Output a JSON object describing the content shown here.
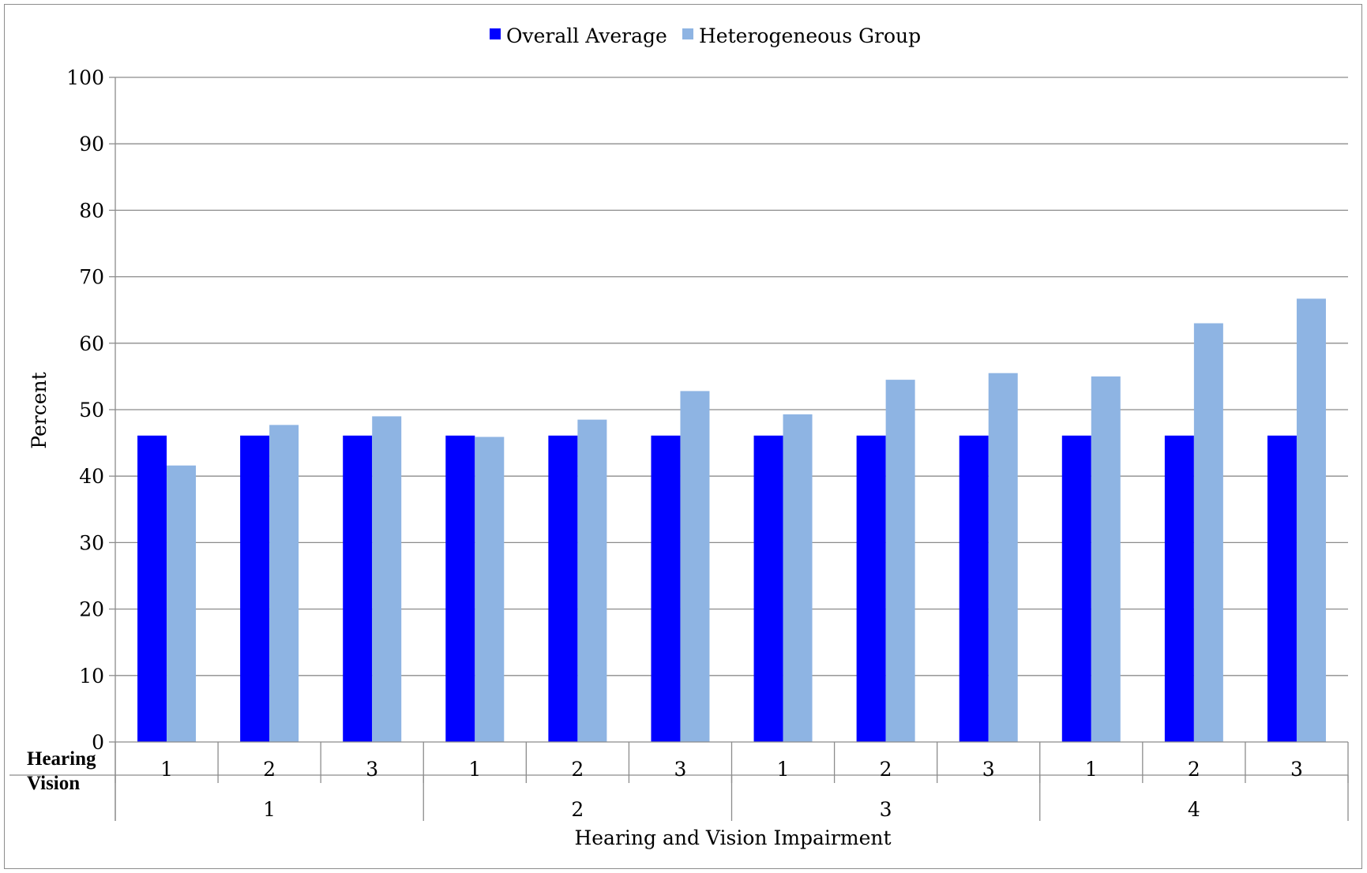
{
  "chart_data": {
    "type": "bar",
    "ylabel": "Percent",
    "xlabel": "Hearing and Vision Impairment",
    "ylim": [
      0,
      100
    ],
    "yticks": [
      "0",
      "10",
      "20",
      "30",
      "40",
      "50",
      "60",
      "70",
      "80",
      "90",
      "100"
    ],
    "grid": true,
    "legend_position": "top-center",
    "row_labels": {
      "inner": "Hearing",
      "outer": "Vision"
    },
    "categories": [
      "1",
      "2",
      "3",
      "1",
      "2",
      "3",
      "1",
      "2",
      "3",
      "1",
      "2",
      "3"
    ],
    "groups": [
      "1",
      "2",
      "3",
      "4"
    ],
    "series": [
      {
        "name": "Overall Average",
        "color": "#0000ff",
        "values": [
          46.1,
          46.1,
          46.1,
          46.1,
          46.1,
          46.1,
          46.1,
          46.1,
          46.1,
          46.1,
          46.1,
          46.1
        ]
      },
      {
        "name": "Heterogeneous Group",
        "color": "#8eb4e3",
        "values": [
          41.6,
          47.7,
          49.0,
          45.9,
          48.5,
          52.8,
          49.3,
          54.5,
          55.5,
          55.0,
          63.0,
          66.7
        ]
      }
    ]
  }
}
